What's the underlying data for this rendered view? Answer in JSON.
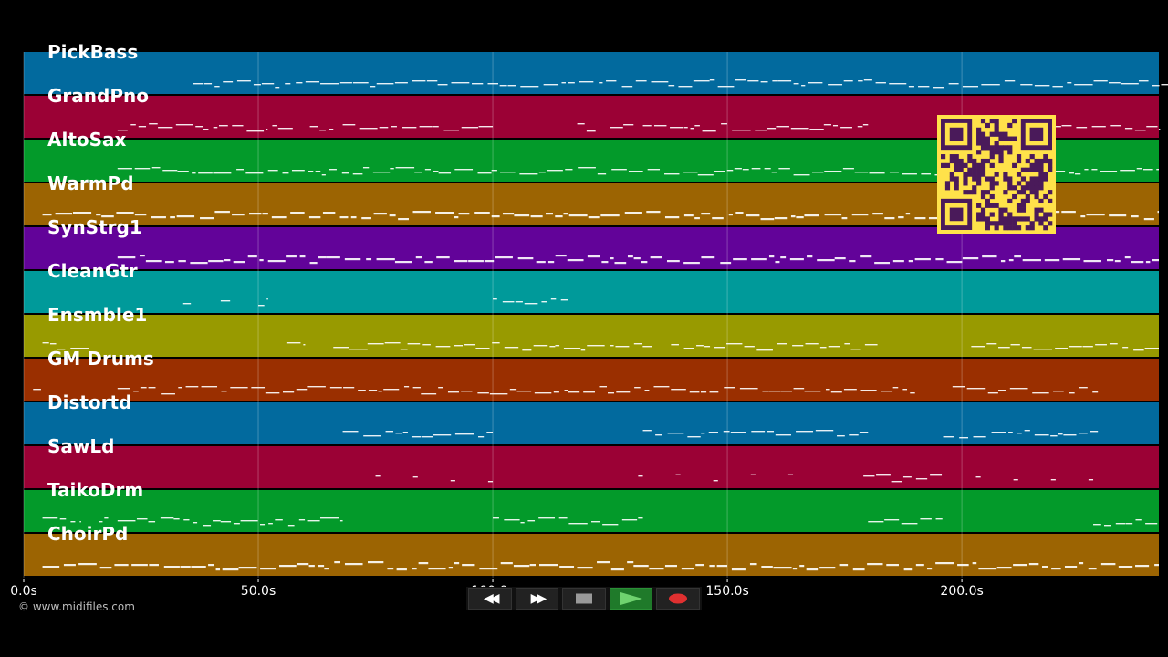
{
  "lanes": [
    {
      "name": "PickBass",
      "color": "#026a9e"
    },
    {
      "name": "GrandPno",
      "color": "#9b0135"
    },
    {
      "name": "AltoSax",
      "color": "#039a2a"
    },
    {
      "name": "WarmPd",
      "color": "#9c6402"
    },
    {
      "name": "SynStrg1",
      "color": "#620399"
    },
    {
      "name": "CleanGtr",
      "color": "#009a9a"
    },
    {
      "name": "Ensmble1",
      "color": "#989a00"
    },
    {
      "name": "GM Drums",
      "color": "#9a2f00"
    },
    {
      "name": "Distortd",
      "color": "#026a9e"
    },
    {
      "name": "SawLd",
      "color": "#9b0135"
    },
    {
      "name": "TaikoDrm",
      "color": "#039a2a"
    },
    {
      "name": "ChoirPd",
      "color": "#9c6402"
    }
  ],
  "timeline": {
    "max_seconds": 242,
    "ticks": [
      {
        "value": 0,
        "label": "0.0s"
      },
      {
        "value": 50,
        "label": "50.0s"
      },
      {
        "value": 100,
        "label": "100.0s"
      },
      {
        "value": 150,
        "label": "150.0s"
      },
      {
        "value": 200,
        "label": "200.0s"
      }
    ]
  },
  "copyright": "© www.midifiles.com",
  "transport": {
    "rewind_icon": "rewind-icon",
    "forward_icon": "fast-forward-icon",
    "stop_icon": "stop-icon",
    "play_icon": "play-icon",
    "record_icon": "record-icon"
  },
  "colors": {
    "background": "#000000",
    "grid": "#ffffff",
    "notes": "#ffffff",
    "qr_yellow": "#ffe24a",
    "qr_dark": "#4a1a5a"
  }
}
